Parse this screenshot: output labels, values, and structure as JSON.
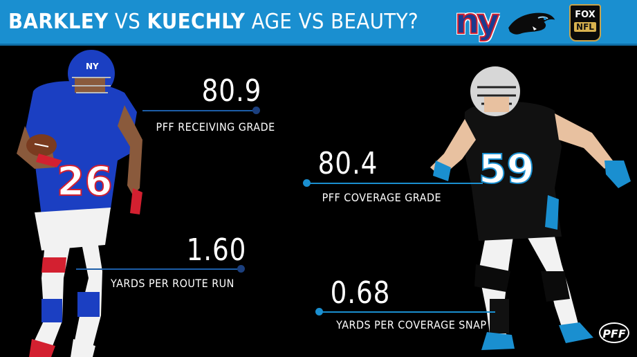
{
  "header": {
    "title_part1": "BARKLEY",
    "title_part2": " VS ",
    "title_part3": "KUECHLY",
    "title_part4": " AGE VS BEAUTY?",
    "logos": {
      "giants": "ny",
      "panthers": "panther-icon",
      "fox_top": "FOX",
      "fox_bottom": "NFL"
    }
  },
  "barkley": {
    "stat1": {
      "value": "80.9",
      "label": "PFF RECEIVING GRADE"
    },
    "stat2": {
      "value": "1.60",
      "label": "YARDS PER ROUTE RUN"
    },
    "jersey": "26",
    "colors": {
      "primary": "#1b3fc2",
      "accent": "#d32030"
    }
  },
  "kuechly": {
    "stat1": {
      "value": "80.4",
      "label": "PFF COVERAGE GRADE"
    },
    "stat2": {
      "value": "0.68",
      "label": "YARDS PER COVERAGE SNAP"
    },
    "jersey": "59",
    "colors": {
      "primary": "#111111",
      "accent": "#1a8fd0"
    }
  },
  "watermark": "PFF"
}
